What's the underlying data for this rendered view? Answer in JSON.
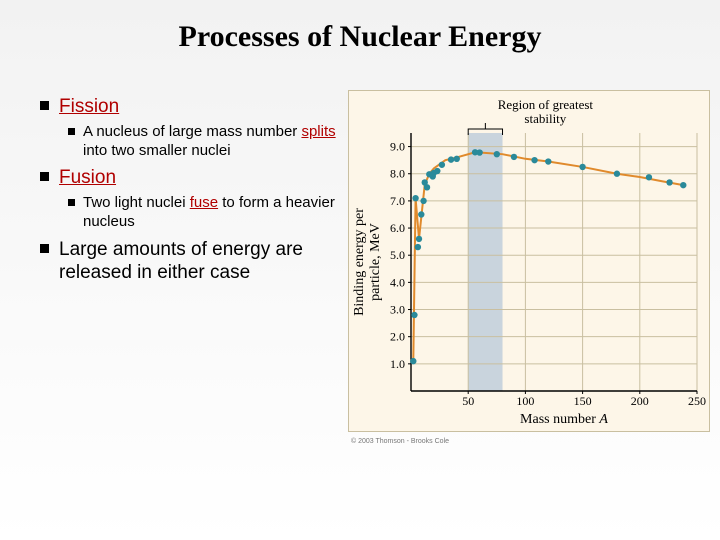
{
  "title": "Processes of Nuclear Energy",
  "bullets": {
    "fission": {
      "label": "Fission",
      "sub": {
        "pre": "A nucleus of large mass number ",
        "em": "splits",
        "post": " into two smaller nuclei"
      }
    },
    "fusion": {
      "label": "Fusion",
      "sub": {
        "pre": "Two light nuclei ",
        "em": "fuse",
        "post": " to form a heavier nucleus"
      }
    },
    "large": "Large amounts of energy are released in either case"
  },
  "chart": {
    "type": "scatter-line",
    "background_color": "#fdf6e8",
    "grid_color": "#c9bfa0",
    "curve_color": "#e08a2c",
    "point_color": "#2a8a9a",
    "band_color": "#9fb8d4",
    "band_opacity": 0.55,
    "xlabel": "Mass number A",
    "ylabel_line1": "Binding energy per",
    "ylabel_line2": "particle, MeV",
    "annotation_line1": "Region of greatest",
    "annotation_line2": "stability",
    "copyright": "© 2003 Thomson - Brooks Cole",
    "xlim": [
      0,
      250
    ],
    "ylim": [
      0,
      9.5
    ],
    "xticks": [
      50,
      100,
      150,
      200,
      250
    ],
    "yticks": [
      1.0,
      2.0,
      3.0,
      4.0,
      5.0,
      6.0,
      7.0,
      8.0,
      9.0
    ],
    "yticklabels": [
      "1.0",
      "2.0",
      "3.0",
      "4.0",
      "5.0",
      "6.0",
      "7.0",
      "8.0",
      "9.0"
    ],
    "band_x": [
      50,
      80
    ],
    "curve_points": [
      [
        2,
        1.1
      ],
      [
        4,
        7.1
      ],
      [
        7,
        5.6
      ],
      [
        12,
        7.6
      ],
      [
        16,
        8.0
      ],
      [
        20,
        8.2
      ],
      [
        30,
        8.5
      ],
      [
        40,
        8.6
      ],
      [
        56,
        8.79
      ],
      [
        60,
        8.78
      ],
      [
        80,
        8.72
      ],
      [
        100,
        8.55
      ],
      [
        120,
        8.45
      ],
      [
        150,
        8.25
      ],
      [
        180,
        8.0
      ],
      [
        200,
        7.88
      ],
      [
        220,
        7.72
      ],
      [
        238,
        7.58
      ]
    ],
    "scatter_points": [
      [
        2,
        1.1
      ],
      [
        3,
        2.8
      ],
      [
        4,
        7.1
      ],
      [
        6,
        5.3
      ],
      [
        7,
        5.6
      ],
      [
        9,
        6.5
      ],
      [
        11,
        7.0
      ],
      [
        12,
        7.68
      ],
      [
        14,
        7.5
      ],
      [
        16,
        7.98
      ],
      [
        19,
        7.9
      ],
      [
        20,
        8.03
      ],
      [
        23,
        8.1
      ],
      [
        27,
        8.33
      ],
      [
        35,
        8.52
      ],
      [
        40,
        8.55
      ],
      [
        56,
        8.79
      ],
      [
        60,
        8.78
      ],
      [
        75,
        8.72
      ],
      [
        90,
        8.62
      ],
      [
        108,
        8.5
      ],
      [
        120,
        8.45
      ],
      [
        150,
        8.25
      ],
      [
        180,
        8.0
      ],
      [
        208,
        7.87
      ],
      [
        226,
        7.68
      ],
      [
        238,
        7.58
      ]
    ],
    "curve_width": 2,
    "point_radius": 3.2,
    "label_fontsize": 14,
    "tick_fontsize": 12
  }
}
